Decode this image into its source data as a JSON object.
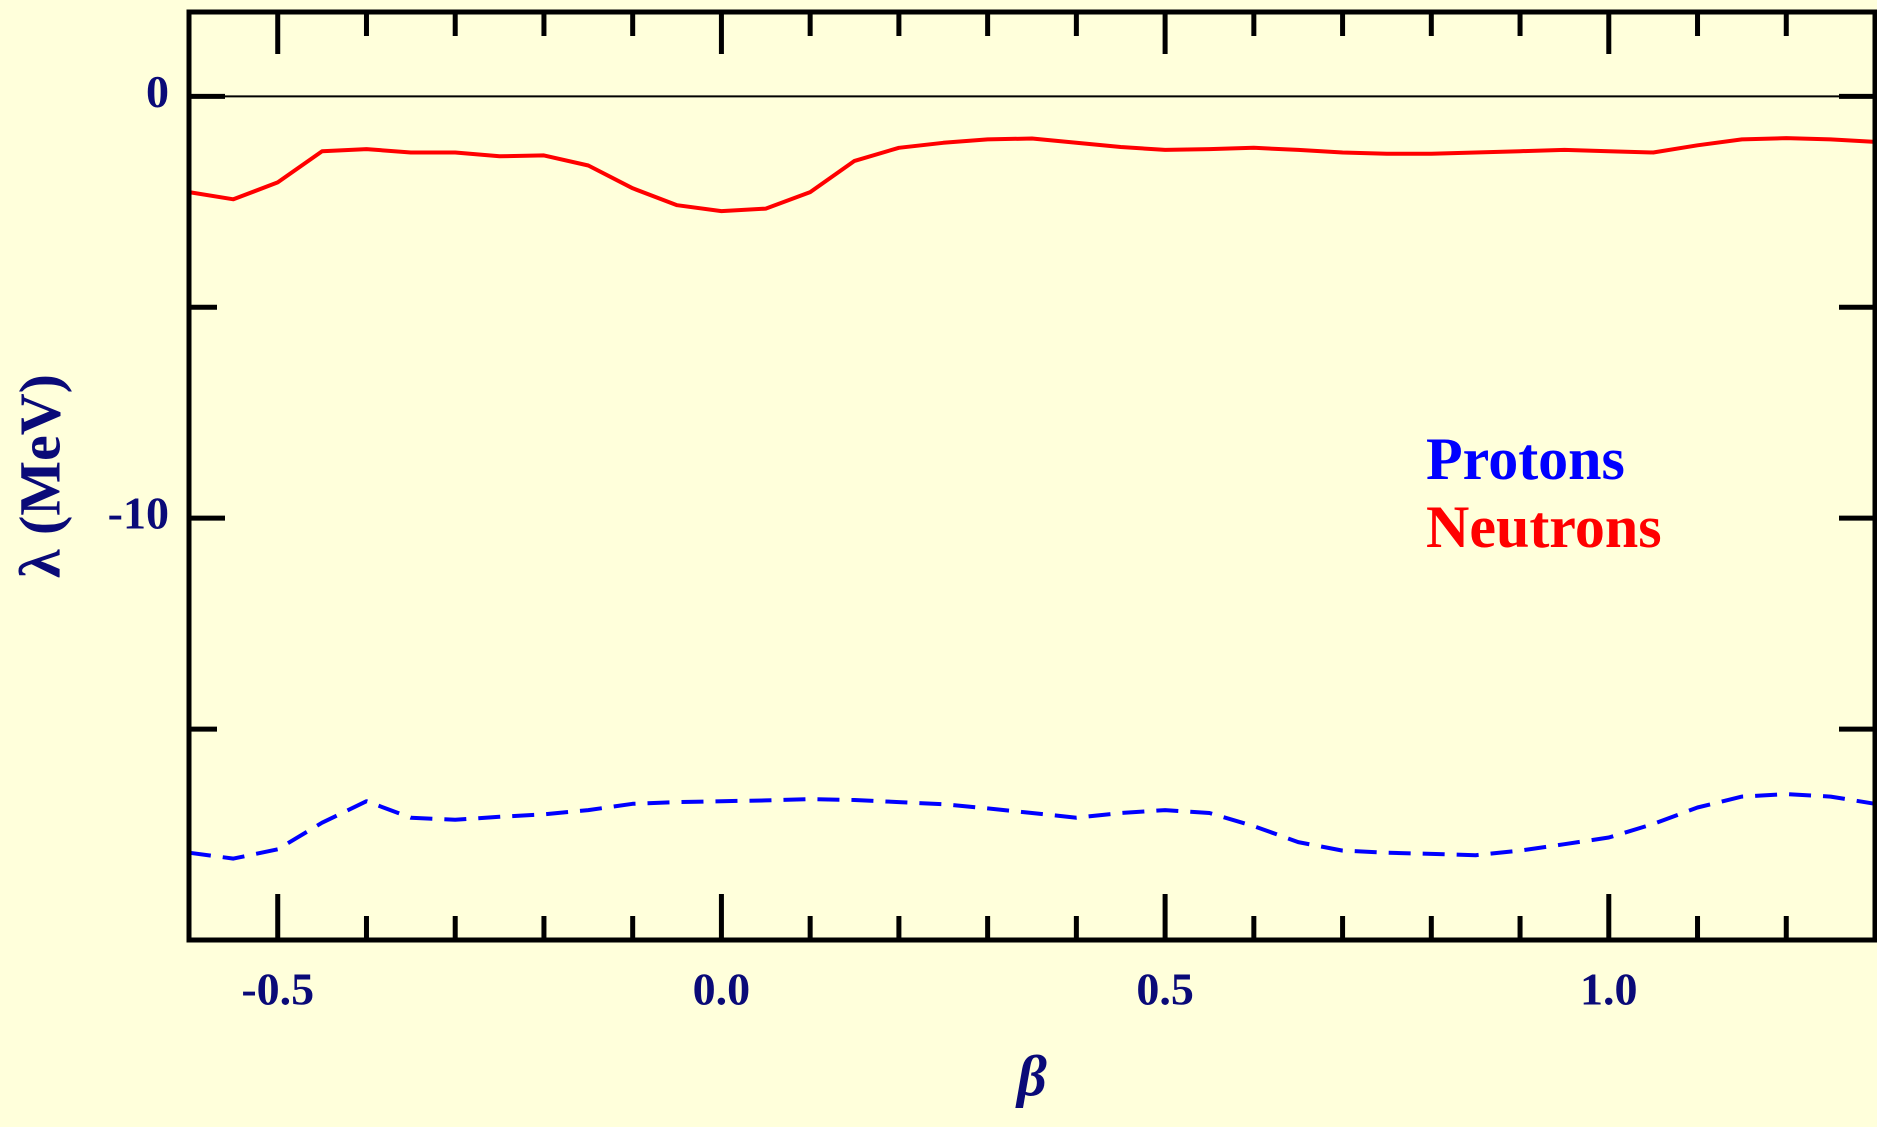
{
  "chart_data": {
    "type": "line",
    "xlabel": "β",
    "ylabel": "λ (MeV)",
    "xlim": [
      -0.6,
      1.3
    ],
    "ylim": [
      -20,
      2
    ],
    "xticks": [
      {
        "value": -0.5,
        "label": "-0.5"
      },
      {
        "value": 0,
        "label": "0.0"
      },
      {
        "value": 0.5,
        "label": "0.5"
      },
      {
        "value": 1,
        "label": "1.0"
      }
    ],
    "minor_xticks": [
      -0.6,
      -0.4,
      -0.3,
      -0.2,
      -0.1,
      0.1,
      0.2,
      0.3,
      0.4,
      0.6,
      0.7,
      0.8,
      0.9,
      1.1,
      1.2,
      1.3
    ],
    "yticks": [
      0,
      -10
    ],
    "minor_yticks": [
      -5,
      -15
    ],
    "hline": 0,
    "legend": "right",
    "x": [
      -0.6,
      -0.55,
      -0.5,
      -0.45,
      -0.4,
      -0.35,
      -0.3,
      -0.25,
      -0.2,
      -0.15,
      -0.1,
      -0.05,
      0,
      0.05,
      0.1,
      0.15,
      0.2,
      0.25,
      0.3,
      0.35,
      0.4,
      0.45,
      0.5,
      0.55,
      0.6,
      0.65,
      0.7,
      0.75,
      0.8,
      0.85,
      0.9,
      0.95,
      1.0,
      1.05,
      1.1,
      1.15,
      1.2,
      1.25,
      1.3
    ],
    "series": [
      {
        "name": "Protons",
        "color": "#0000ff",
        "dash": true,
        "values": [
          -17.93,
          -18.07,
          -17.85,
          -17.22,
          -16.71,
          -17.1,
          -17.15,
          -17.08,
          -17.02,
          -16.92,
          -16.77,
          -16.73,
          -16.71,
          -16.69,
          -16.66,
          -16.68,
          -16.73,
          -16.78,
          -16.88,
          -16.99,
          -17.1,
          -16.99,
          -16.92,
          -16.99,
          -17.3,
          -17.68,
          -17.88,
          -17.93,
          -17.96,
          -17.99,
          -17.88,
          -17.73,
          -17.57,
          -17.25,
          -16.86,
          -16.6,
          -16.54,
          -16.6,
          -16.77
        ]
      },
      {
        "name": "Neutrons",
        "color": "#ff0000",
        "dash": false,
        "values": [
          -2.27,
          -2.44,
          -2.04,
          -1.3,
          -1.25,
          -1.33,
          -1.33,
          -1.42,
          -1.4,
          -1.64,
          -2.18,
          -2.58,
          -2.72,
          -2.66,
          -2.27,
          -1.53,
          -1.22,
          -1.1,
          -1.02,
          -1.0,
          -1.1,
          -1.2,
          -1.27,
          -1.25,
          -1.22,
          -1.27,
          -1.33,
          -1.36,
          -1.36,
          -1.33,
          -1.3,
          -1.27,
          -1.3,
          -1.33,
          -1.16,
          -1.02,
          -0.99,
          -1.02,
          -1.08
        ]
      }
    ]
  }
}
